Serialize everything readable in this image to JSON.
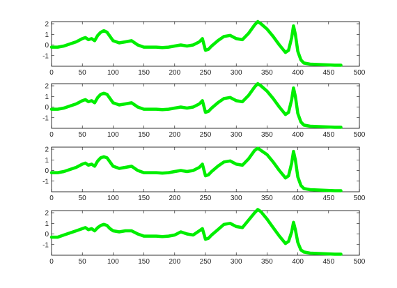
{
  "figure": {
    "background": "#ffffff"
  },
  "line_color": "#00ee00",
  "chart_data": [
    {
      "type": "line",
      "title": "",
      "xlabel": "",
      "ylabel": "",
      "xlim": [
        0,
        500
      ],
      "ylim": [
        -2,
        2.2
      ],
      "xticks": [
        0,
        50,
        100,
        150,
        200,
        250,
        300,
        350,
        400,
        450,
        500
      ],
      "yticks": [
        -1,
        0,
        1,
        2
      ],
      "grid": false,
      "series": [
        {
          "x": [
            0,
            10,
            20,
            30,
            40,
            50,
            55,
            60,
            65,
            70,
            75,
            80,
            85,
            90,
            95,
            100,
            110,
            120,
            130,
            140,
            150,
            160,
            170,
            180,
            190,
            200,
            210,
            220,
            230,
            240,
            245,
            250,
            255,
            260,
            270,
            280,
            290,
            300,
            310,
            320,
            330,
            335,
            340,
            350,
            360,
            370,
            380,
            385,
            390,
            393,
            396,
            400,
            405,
            410,
            420,
            440,
            460,
            470
          ],
          "y": [
            -0.2,
            -0.2,
            -0.1,
            0.1,
            0.3,
            0.6,
            0.7,
            0.5,
            0.6,
            0.4,
            0.9,
            1.2,
            1.35,
            1.2,
            0.8,
            0.4,
            0.2,
            0.3,
            0.4,
            0.0,
            -0.2,
            -0.2,
            -0.2,
            -0.25,
            -0.2,
            -0.1,
            0.0,
            -0.1,
            0.0,
            0.3,
            0.6,
            -0.5,
            -0.4,
            -0.1,
            0.4,
            0.8,
            0.9,
            0.6,
            0.5,
            1.1,
            1.9,
            2.2,
            2.0,
            1.5,
            0.8,
            0.0,
            -0.7,
            -0.5,
            0.7,
            1.8,
            1.0,
            -0.6,
            -1.4,
            -1.7,
            -1.8,
            -1.85,
            -1.9,
            -1.9
          ]
        }
      ]
    },
    {
      "type": "line",
      "title": "",
      "xlabel": "",
      "ylabel": "",
      "xlim": [
        0,
        500
      ],
      "ylim": [
        -2,
        2.2
      ],
      "xticks": [
        0,
        50,
        100,
        150,
        200,
        250,
        300,
        350,
        400,
        450,
        500
      ],
      "yticks": [
        -1,
        0,
        1,
        2
      ],
      "grid": false,
      "series": [
        {
          "x": [
            0,
            10,
            20,
            30,
            40,
            50,
            55,
            60,
            65,
            70,
            75,
            80,
            85,
            90,
            95,
            100,
            110,
            120,
            130,
            140,
            150,
            160,
            170,
            180,
            190,
            200,
            210,
            220,
            230,
            240,
            245,
            250,
            255,
            260,
            270,
            280,
            290,
            300,
            310,
            320,
            330,
            335,
            340,
            350,
            360,
            370,
            380,
            385,
            390,
            393,
            396,
            400,
            405,
            410,
            420,
            440,
            460,
            470
          ],
          "y": [
            -0.2,
            -0.2,
            -0.1,
            0.1,
            0.3,
            0.6,
            0.7,
            0.5,
            0.6,
            0.4,
            0.9,
            1.2,
            1.3,
            1.2,
            0.8,
            0.4,
            0.2,
            0.3,
            0.4,
            0.0,
            -0.2,
            -0.2,
            -0.2,
            -0.25,
            -0.2,
            -0.1,
            0.0,
            -0.1,
            0.0,
            0.3,
            0.6,
            -0.5,
            -0.4,
            -0.1,
            0.4,
            0.8,
            0.9,
            0.6,
            0.5,
            1.1,
            1.9,
            2.2,
            2.0,
            1.5,
            0.8,
            0.0,
            -0.7,
            -0.5,
            0.7,
            1.8,
            1.0,
            -0.6,
            -1.4,
            -1.7,
            -1.8,
            -1.85,
            -1.9,
            -1.9
          ]
        }
      ]
    },
    {
      "type": "line",
      "title": "",
      "xlabel": "",
      "ylabel": "",
      "xlim": [
        0,
        500
      ],
      "ylim": [
        -2,
        2.2
      ],
      "xticks": [
        0,
        50,
        100,
        150,
        200,
        250,
        300,
        350,
        400,
        450,
        500
      ],
      "yticks": [
        -1,
        0,
        1,
        2
      ],
      "grid": false,
      "series": [
        {
          "x": [
            0,
            10,
            20,
            30,
            40,
            50,
            55,
            60,
            65,
            70,
            75,
            80,
            85,
            90,
            95,
            100,
            110,
            120,
            130,
            140,
            150,
            160,
            170,
            180,
            190,
            200,
            210,
            220,
            230,
            240,
            245,
            250,
            255,
            260,
            270,
            280,
            290,
            300,
            310,
            320,
            330,
            335,
            340,
            350,
            360,
            370,
            380,
            385,
            390,
            393,
            396,
            400,
            405,
            410,
            420,
            440,
            460,
            470
          ],
          "y": [
            -0.2,
            -0.2,
            -0.1,
            0.1,
            0.3,
            0.6,
            0.7,
            0.5,
            0.6,
            0.4,
            0.9,
            1.2,
            1.3,
            1.2,
            0.8,
            0.4,
            0.2,
            0.3,
            0.4,
            0.0,
            -0.2,
            -0.2,
            -0.2,
            -0.25,
            -0.2,
            -0.1,
            0.0,
            -0.1,
            0.0,
            0.3,
            0.6,
            -0.5,
            -0.4,
            -0.1,
            0.4,
            0.8,
            0.9,
            0.6,
            0.5,
            1.1,
            1.9,
            2.1,
            1.9,
            1.5,
            0.8,
            0.0,
            -0.7,
            -0.5,
            0.7,
            1.8,
            1.0,
            -0.6,
            -1.4,
            -1.7,
            -1.8,
            -1.85,
            -1.9,
            -1.9
          ]
        }
      ]
    },
    {
      "type": "line",
      "title": "",
      "xlabel": "",
      "ylabel": "",
      "xlim": [
        0,
        500
      ],
      "ylim": [
        -2,
        2.2
      ],
      "xticks": [
        0,
        50,
        100,
        150,
        200,
        250,
        300,
        350,
        400,
        450,
        500
      ],
      "yticks": [
        -1,
        0,
        1,
        2
      ],
      "grid": false,
      "series": [
        {
          "x": [
            0,
            10,
            20,
            30,
            40,
            50,
            55,
            60,
            65,
            70,
            75,
            80,
            85,
            90,
            95,
            100,
            110,
            120,
            130,
            140,
            150,
            160,
            170,
            180,
            190,
            200,
            210,
            220,
            230,
            240,
            245,
            250,
            255,
            260,
            270,
            280,
            290,
            300,
            310,
            320,
            330,
            335,
            340,
            350,
            360,
            370,
            380,
            385,
            390,
            393,
            396,
            400,
            405,
            410,
            420,
            440,
            460,
            470
          ],
          "y": [
            -0.3,
            -0.3,
            -0.1,
            0.1,
            0.3,
            0.5,
            0.6,
            0.4,
            0.5,
            0.3,
            0.6,
            0.8,
            0.9,
            0.8,
            0.5,
            0.3,
            0.2,
            0.3,
            0.3,
            0.0,
            -0.2,
            -0.2,
            -0.2,
            -0.25,
            -0.2,
            -0.1,
            0.2,
            0.0,
            -0.1,
            0.3,
            0.5,
            -0.5,
            -0.4,
            -0.1,
            0.4,
            0.9,
            1.0,
            0.7,
            0.6,
            1.3,
            2.0,
            2.3,
            2.1,
            1.4,
            0.6,
            -0.2,
            -0.9,
            -0.7,
            0.2,
            1.1,
            0.4,
            -0.8,
            -1.5,
            -1.7,
            -1.8,
            -1.85,
            -1.9,
            -1.9
          ]
        }
      ]
    }
  ]
}
